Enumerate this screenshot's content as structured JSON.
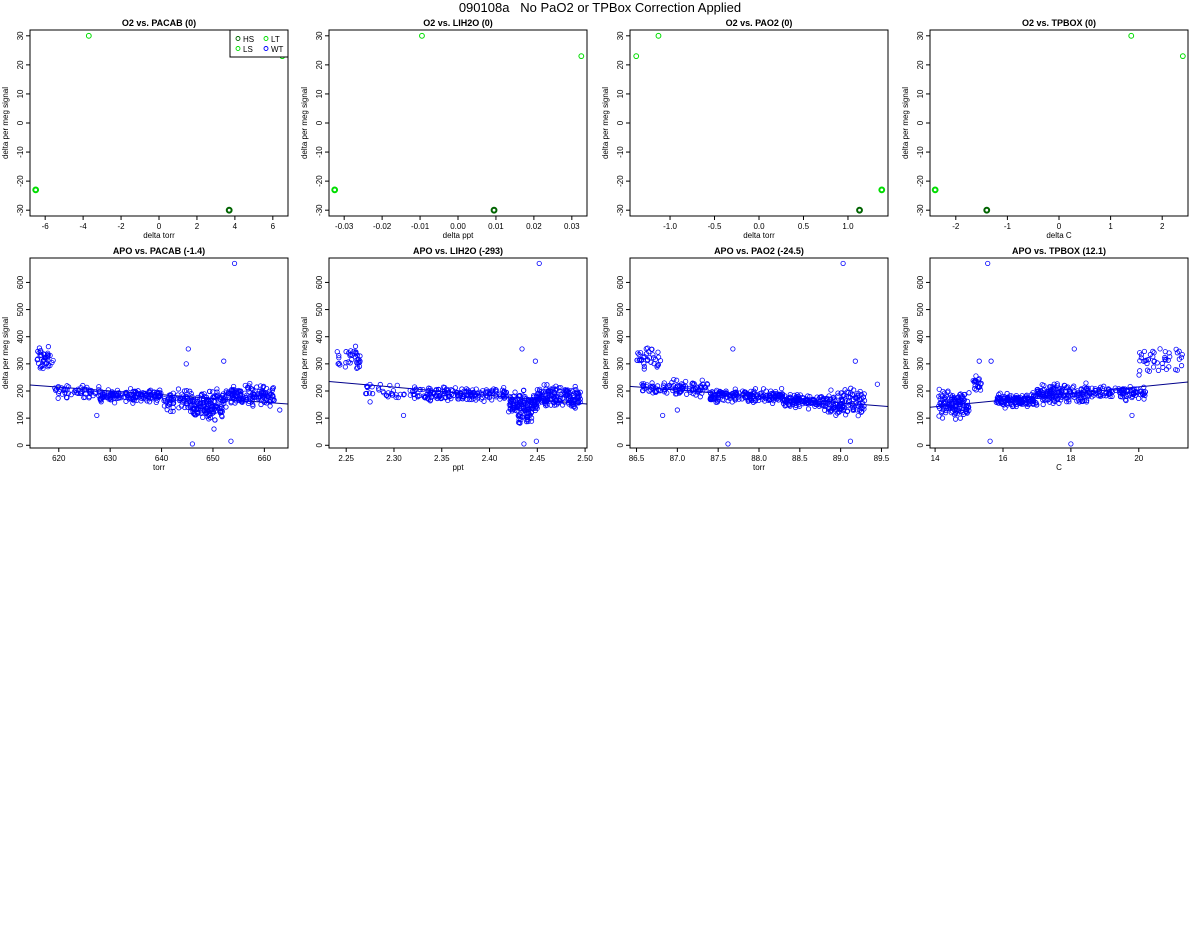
{
  "page": {
    "title": "090108a   No PaO2 or TPBox Correction Applied"
  },
  "legend": {
    "entries": [
      "HS",
      "LT",
      "LS",
      "WT"
    ],
    "location": "top-right of first panel"
  },
  "colors": {
    "green": "#00dd00",
    "dark_green": "#006400",
    "blue": "#0000ff",
    "navy": "#00008b"
  },
  "chart_data": [
    {
      "type": "scatter",
      "title": "O2 vs. PACAB (0)",
      "xlabel": "delta torr",
      "ylabel": "delta per meg signal",
      "xlim": [
        -6.8,
        6.8
      ],
      "ylim": [
        -32,
        32
      ],
      "xticks": [
        -6,
        -4,
        -2,
        0,
        2,
        4,
        6
      ],
      "xtick_labels": [
        "-6",
        "-4",
        "-2",
        "0",
        "2",
        "4",
        "6"
      ],
      "yticks": [
        -30,
        -20,
        -10,
        0,
        10,
        20,
        30
      ],
      "ytick_labels": [
        "-30",
        "-20",
        "-10",
        "0",
        "10",
        "20",
        "30"
      ],
      "points": [
        {
          "x": -6.5,
          "y": -23,
          "c": "green",
          "w": 2
        },
        {
          "x": -3.7,
          "y": 30,
          "c": "green",
          "w": 1
        },
        {
          "x": 3.7,
          "y": -30,
          "c": "dark_green",
          "w": 2
        },
        {
          "x": 6.5,
          "y": 23,
          "c": "green",
          "w": 1
        }
      ],
      "legend": true
    },
    {
      "type": "scatter",
      "title": "O2 vs. LIH2O (0)",
      "xlabel": "delta ppt",
      "ylabel": "delta per meg signal",
      "xlim": [
        -0.034,
        0.034
      ],
      "ylim": [
        -32,
        32
      ],
      "xticks": [
        -0.03,
        -0.02,
        -0.01,
        0,
        0.01,
        0.02,
        0.03
      ],
      "xtick_labels": [
        "-0.03",
        "-0.02",
        "-0.01",
        "0.00",
        "0.01",
        "0.02",
        "0.03"
      ],
      "yticks": [
        -30,
        -20,
        -10,
        0,
        10,
        20,
        30
      ],
      "ytick_labels": [
        "-30",
        "-20",
        "-10",
        "0",
        "10",
        "20",
        "30"
      ],
      "points": [
        {
          "x": -0.0325,
          "y": -23,
          "c": "green",
          "w": 2
        },
        {
          "x": -0.0095,
          "y": 30,
          "c": "green",
          "w": 1
        },
        {
          "x": 0.0095,
          "y": -30,
          "c": "dark_green",
          "w": 2
        },
        {
          "x": 0.0325,
          "y": 23,
          "c": "green",
          "w": 1
        }
      ]
    },
    {
      "type": "scatter",
      "title": "O2 vs. PAO2 (0)",
      "xlabel": "delta torr",
      "ylabel": "delta per meg signal",
      "xlim": [
        -1.45,
        1.45
      ],
      "ylim": [
        -32,
        32
      ],
      "xticks": [
        -1,
        -0.5,
        0,
        0.5,
        1
      ],
      "xtick_labels": [
        "-1.0",
        "-0.5",
        "0.0",
        "0.5",
        "1.0"
      ],
      "yticks": [
        -30,
        -20,
        -10,
        0,
        10,
        20,
        30
      ],
      "ytick_labels": [
        "-30",
        "-20",
        "-10",
        "0",
        "10",
        "20",
        "30"
      ],
      "points": [
        {
          "x": -1.38,
          "y": 23,
          "c": "green",
          "w": 1
        },
        {
          "x": -1.13,
          "y": 30,
          "c": "green",
          "w": 1
        },
        {
          "x": 1.13,
          "y": -30,
          "c": "dark_green",
          "w": 2
        },
        {
          "x": 1.38,
          "y": -23,
          "c": "green",
          "w": 2
        }
      ]
    },
    {
      "type": "scatter",
      "title": "O2 vs. TPBOX (0)",
      "xlabel": "delta C",
      "ylabel": "delta per meg signal",
      "xlim": [
        -2.5,
        2.5
      ],
      "ylim": [
        -32,
        32
      ],
      "xticks": [
        -2,
        -1,
        0,
        1,
        2
      ],
      "xtick_labels": [
        "-2",
        "-1",
        "0",
        "1",
        "2"
      ],
      "yticks": [
        -30,
        -20,
        -10,
        0,
        10,
        20,
        30
      ],
      "ytick_labels": [
        "-30",
        "-20",
        "-10",
        "0",
        "10",
        "20",
        "30"
      ],
      "points": [
        {
          "x": -2.4,
          "y": -23,
          "c": "green",
          "w": 2
        },
        {
          "x": -1.4,
          "y": -30,
          "c": "dark_green",
          "w": 2
        },
        {
          "x": 1.4,
          "y": 30,
          "c": "green",
          "w": 1
        },
        {
          "x": 2.4,
          "y": 23,
          "c": "green",
          "w": 1
        }
      ]
    },
    {
      "type": "scatter",
      "title": "APO vs. PACAB (-1.4)",
      "xlabel": "torr",
      "ylabel": "delta per meg signal",
      "xlim": [
        614.4,
        664.6
      ],
      "ylim": [
        -10,
        690
      ],
      "xticks": [
        620,
        630,
        640,
        650,
        660
      ],
      "xtick_labels": [
        "620",
        "630",
        "640",
        "650",
        "660"
      ],
      "yticks": [
        0,
        100,
        200,
        300,
        400,
        500,
        600
      ],
      "ytick_labels": [
        "0",
        "100",
        "200",
        "300",
        "400",
        "500",
        "600"
      ],
      "fit": [
        [
          614.4,
          222
        ],
        [
          664.6,
          152
        ]
      ],
      "clusters": [
        {
          "x": [
            615.5,
            619
          ],
          "y": [
            250,
            380
          ],
          "n": 40
        },
        {
          "x": [
            619,
            628
          ],
          "y": [
            165,
            230
          ],
          "n": 55
        },
        {
          "x": [
            628,
            640
          ],
          "y": [
            150,
            215
          ],
          "n": 150
        },
        {
          "x": [
            640,
            653
          ],
          "y": [
            110,
            220
          ],
          "n": 160
        },
        {
          "x": [
            646,
            652
          ],
          "y": [
            80,
            170
          ],
          "n": 60
        },
        {
          "x": [
            653,
            662
          ],
          "y": [
            130,
            235
          ],
          "n": 140
        }
      ],
      "points": [
        {
          "x": 654.2,
          "y": 670
        },
        {
          "x": 645.2,
          "y": 355
        },
        {
          "x": 652.1,
          "y": 310
        },
        {
          "x": 646.0,
          "y": 5
        },
        {
          "x": 653.5,
          "y": 15
        },
        {
          "x": 650.2,
          "y": 60
        },
        {
          "x": 627.4,
          "y": 110
        },
        {
          "x": 663.0,
          "y": 130
        },
        {
          "x": 644.8,
          "y": 300
        }
      ]
    },
    {
      "type": "scatter",
      "title": "APO vs. LIH2O (-293)",
      "xlabel": "ppt",
      "ylabel": "delta per meg signal",
      "xlim": [
        2.232,
        2.502
      ],
      "ylim": [
        -10,
        690
      ],
      "xticks": [
        2.25,
        2.3,
        2.35,
        2.4,
        2.45,
        2.5
      ],
      "xtick_labels": [
        "2.25",
        "2.30",
        "2.35",
        "2.40",
        "2.45",
        "2.50"
      ],
      "yticks": [
        0,
        100,
        200,
        300,
        400,
        500,
        600
      ],
      "ytick_labels": [
        "0",
        "100",
        "200",
        "300",
        "400",
        "500",
        "600"
      ],
      "fit": [
        [
          2.232,
          235
        ],
        [
          2.502,
          152
        ]
      ],
      "clusters": [
        {
          "x": [
            2.24,
            2.265
          ],
          "y": [
            255,
            380
          ],
          "n": 35
        },
        {
          "x": [
            2.27,
            2.33
          ],
          "y": [
            150,
            235
          ],
          "n": 45
        },
        {
          "x": [
            2.33,
            2.42
          ],
          "y": [
            150,
            225
          ],
          "n": 170
        },
        {
          "x": [
            2.42,
            2.45
          ],
          "y": [
            100,
            210
          ],
          "n": 110
        },
        {
          "x": [
            2.43,
            2.445
          ],
          "y": [
            70,
            150
          ],
          "n": 40
        },
        {
          "x": [
            2.45,
            2.495
          ],
          "y": [
            120,
            240
          ],
          "n": 170
        }
      ],
      "points": [
        {
          "x": 2.452,
          "y": 670
        },
        {
          "x": 2.434,
          "y": 355
        },
        {
          "x": 2.448,
          "y": 310
        },
        {
          "x": 2.436,
          "y": 5
        },
        {
          "x": 2.449,
          "y": 15
        },
        {
          "x": 2.31,
          "y": 110
        },
        {
          "x": 2.275,
          "y": 160
        },
        {
          "x": 2.495,
          "y": 170
        }
      ]
    },
    {
      "type": "scatter",
      "title": "APO vs. PAO2 (-24.5)",
      "xlabel": "torr",
      "ylabel": "delta per meg signal",
      "xlim": [
        86.42,
        89.58
      ],
      "ylim": [
        -10,
        690
      ],
      "xticks": [
        86.5,
        87.0,
        87.5,
        88.0,
        88.5,
        89.0,
        89.5
      ],
      "xtick_labels": [
        "86.5",
        "87.0",
        "87.5",
        "88.0",
        "88.5",
        "89.0",
        "89.5"
      ],
      "yticks": [
        0,
        100,
        200,
        300,
        400,
        500,
        600
      ],
      "ytick_labels": [
        "0",
        "100",
        "200",
        "300",
        "400",
        "500",
        "600"
      ],
      "fit": [
        [
          86.42,
          217
        ],
        [
          89.58,
          143
        ]
      ],
      "clusters": [
        {
          "x": [
            86.5,
            86.8
          ],
          "y": [
            260,
            380
          ],
          "n": 35
        },
        {
          "x": [
            86.55,
            87.4
          ],
          "y": [
            170,
            250
          ],
          "n": 110
        },
        {
          "x": [
            87.4,
            88.3
          ],
          "y": [
            150,
            215
          ],
          "n": 200
        },
        {
          "x": [
            88.3,
            88.8
          ],
          "y": [
            130,
            195
          ],
          "n": 120
        },
        {
          "x": [
            88.8,
            89.3
          ],
          "y": [
            90,
            230
          ],
          "n": 130
        }
      ],
      "points": [
        {
          "x": 89.03,
          "y": 670
        },
        {
          "x": 87.68,
          "y": 355
        },
        {
          "x": 89.18,
          "y": 310
        },
        {
          "x": 87.62,
          "y": 5
        },
        {
          "x": 89.12,
          "y": 15
        },
        {
          "x": 86.82,
          "y": 110
        },
        {
          "x": 89.45,
          "y": 225
        },
        {
          "x": 87.0,
          "y": 130
        }
      ]
    },
    {
      "type": "scatter",
      "title": "APO vs. TPBOX (12.1)",
      "xlabel": "C",
      "ylabel": "delta per meg signal",
      "xlim": [
        13.85,
        21.45
      ],
      "ylim": [
        -10,
        690
      ],
      "xticks": [
        14,
        16,
        18,
        20
      ],
      "xtick_labels": [
        "14",
        "16",
        "18",
        "20"
      ],
      "yticks": [
        0,
        100,
        200,
        300,
        400,
        500,
        600
      ],
      "ytick_labels": [
        "0",
        "100",
        "200",
        "300",
        "400",
        "500",
        "600"
      ],
      "fit": [
        [
          13.85,
          140
        ],
        [
          21.45,
          233
        ]
      ],
      "clusters": [
        {
          "x": [
            14.1,
            15.0
          ],
          "y": [
            80,
            220
          ],
          "n": 130
        },
        {
          "x": [
            15.1,
            15.4
          ],
          "y": [
            190,
            260
          ],
          "n": 20
        },
        {
          "x": [
            15.8,
            17.0
          ],
          "y": [
            130,
            200
          ],
          "n": 130
        },
        {
          "x": [
            17.0,
            18.5
          ],
          "y": [
            140,
            240
          ],
          "n": 160
        },
        {
          "x": [
            18.5,
            20.2
          ],
          "y": [
            160,
            230
          ],
          "n": 110
        },
        {
          "x": [
            20.0,
            21.3
          ],
          "y": [
            230,
            390
          ],
          "n": 45
        }
      ],
      "points": [
        {
          "x": 15.55,
          "y": 670
        },
        {
          "x": 18.1,
          "y": 355
        },
        {
          "x": 15.65,
          "y": 310
        },
        {
          "x": 18.0,
          "y": 5
        },
        {
          "x": 15.62,
          "y": 15
        },
        {
          "x": 15.3,
          "y": 310
        },
        {
          "x": 19.8,
          "y": 110
        }
      ]
    }
  ]
}
